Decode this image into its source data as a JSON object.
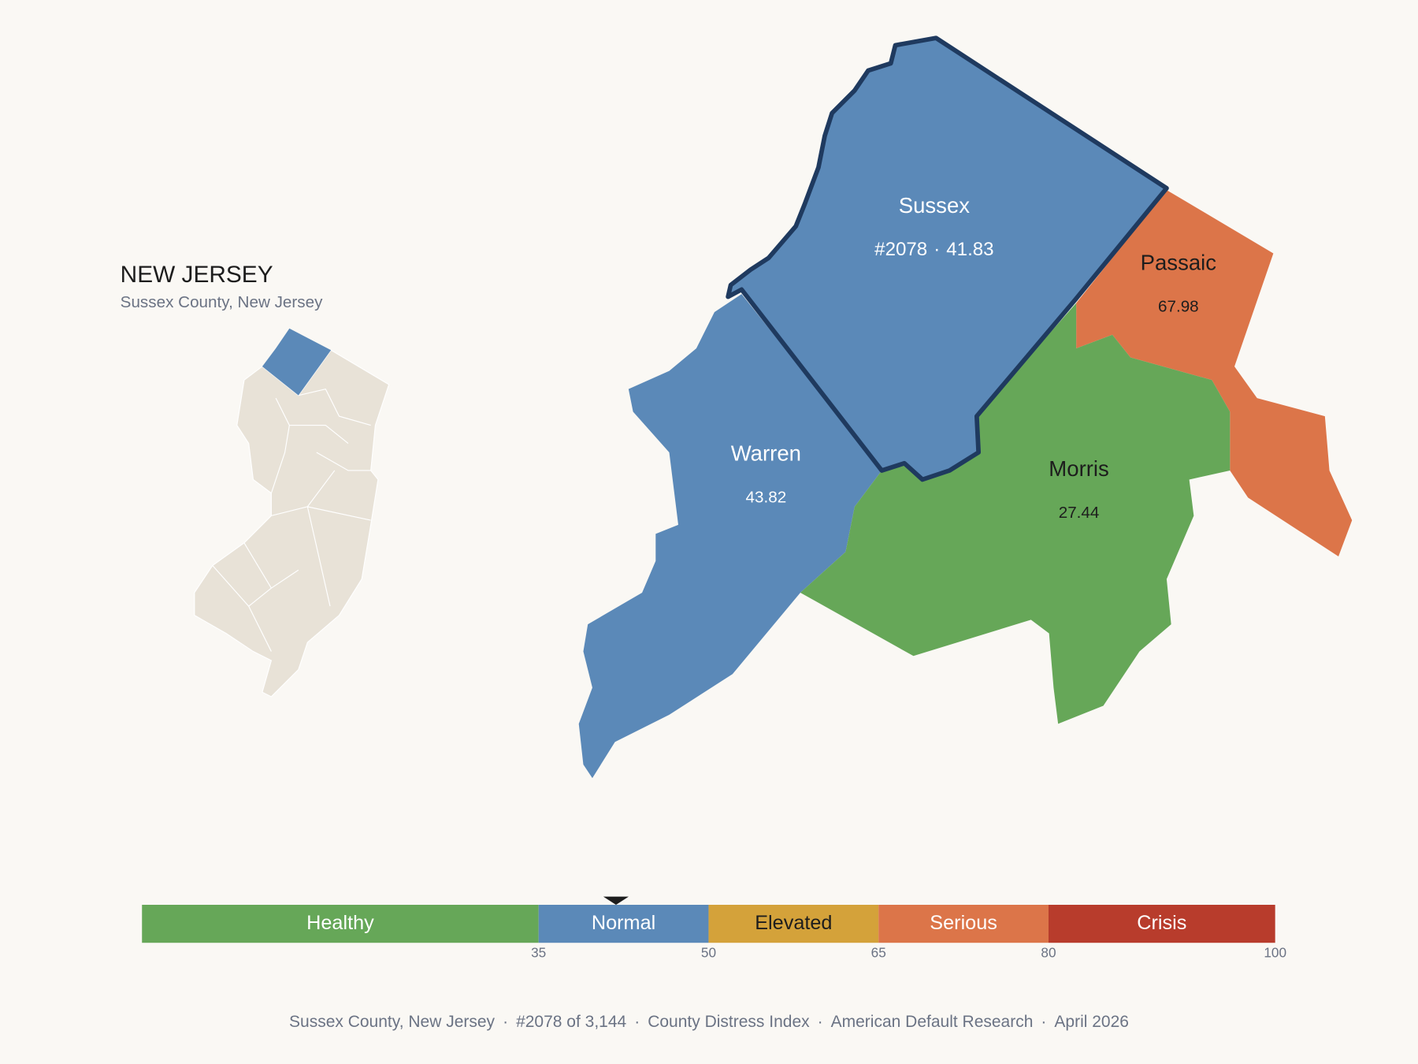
{
  "header": {
    "title": "NEW JERSEY",
    "subtitle": "Sussex County, New Jersey"
  },
  "counties": [
    {
      "name": "Sussex",
      "rank": "#2078",
      "separator": "·",
      "value": 41.83,
      "color": "#5b89b8",
      "outlined": true
    },
    {
      "name": "Passaic",
      "value": 67.98,
      "color": "#dc7549"
    },
    {
      "name": "Warren",
      "value": 43.82,
      "color": "#5b89b8"
    },
    {
      "name": "Morris",
      "value": 27.44,
      "color": "#66a758"
    }
  ],
  "scale": {
    "range": [
      0,
      100
    ],
    "ticks": [
      35,
      50,
      65,
      80,
      100
    ],
    "bands": [
      {
        "name": "Healthy",
        "color": "#66a758"
      },
      {
        "name": "Normal",
        "color": "#5b89b8"
      },
      {
        "name": "Elevated",
        "color": "#d4a23a"
      },
      {
        "name": "Serious",
        "color": "#dc7549"
      },
      {
        "name": "Crisis",
        "color": "#b83c2c"
      }
    ]
  },
  "footer": {
    "separator": "·",
    "items": [
      "Sussex County, New Jersey",
      "#2078 of 3,144",
      "County Distress Index",
      "American Default Research",
      "April 2026"
    ]
  }
}
